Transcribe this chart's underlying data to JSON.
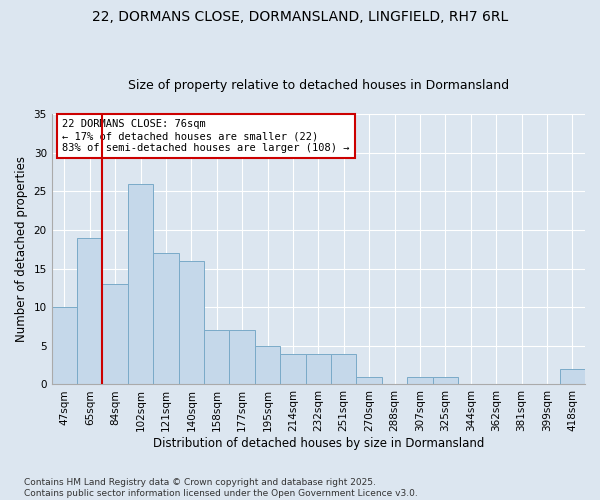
{
  "title": "22, DORMANS CLOSE, DORMANSLAND, LINGFIELD, RH7 6RL",
  "subtitle": "Size of property relative to detached houses in Dormansland",
  "xlabel": "Distribution of detached houses by size in Dormansland",
  "ylabel": "Number of detached properties",
  "categories": [
    "47sqm",
    "65sqm",
    "84sqm",
    "102sqm",
    "121sqm",
    "140sqm",
    "158sqm",
    "177sqm",
    "195sqm",
    "214sqm",
    "232sqm",
    "251sqm",
    "270sqm",
    "288sqm",
    "307sqm",
    "325sqm",
    "344sqm",
    "362sqm",
    "381sqm",
    "399sqm",
    "418sqm"
  ],
  "values": [
    10,
    19,
    13,
    26,
    17,
    16,
    7,
    7,
    5,
    4,
    4,
    4,
    1,
    0,
    1,
    1,
    0,
    0,
    0,
    0,
    2
  ],
  "bar_color": "#c5d8ea",
  "bar_edge_color": "#7aaac8",
  "background_color": "#dce6f0",
  "grid_color": "#ffffff",
  "red_line_x": 1.5,
  "annotation_text": "22 DORMANS CLOSE: 76sqm\n← 17% of detached houses are smaller (22)\n83% of semi-detached houses are larger (108) →",
  "annotation_box_facecolor": "#ffffff",
  "annotation_box_edgecolor": "#cc0000",
  "ylim": [
    0,
    35
  ],
  "yticks": [
    0,
    5,
    10,
    15,
    20,
    25,
    30,
    35
  ],
  "footer": "Contains HM Land Registry data © Crown copyright and database right 2025.\nContains public sector information licensed under the Open Government Licence v3.0.",
  "title_fontsize": 10,
  "subtitle_fontsize": 9,
  "axis_fontsize": 8.5,
  "tick_fontsize": 7.5,
  "annotation_fontsize": 7.5,
  "footer_fontsize": 6.5
}
